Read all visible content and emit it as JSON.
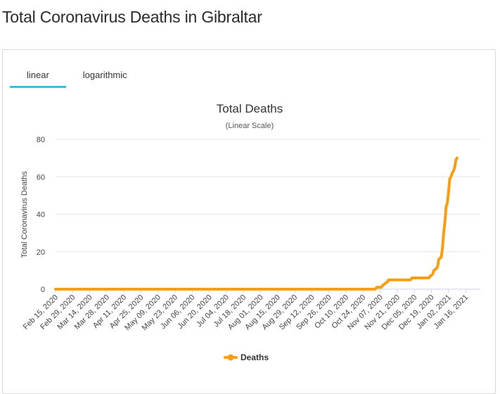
{
  "page": {
    "title": "Total Coronavirus Deaths in Gibraltar"
  },
  "tabs": [
    {
      "label": "linear",
      "active": true
    },
    {
      "label": "logarithmic",
      "active": false
    }
  ],
  "colors": {
    "series": "#f89e0f",
    "tab_active": "#3fbbe8",
    "grid": "#e6e6e6"
  },
  "chart_data": {
    "type": "line",
    "title": "Total Deaths",
    "subtitle": "(Linear Scale)",
    "ylabel": "Total Coronavirus Deaths",
    "xlabel": "",
    "ylim": [
      0,
      80
    ],
    "yticks": [
      0,
      20,
      40,
      60,
      80
    ],
    "grid": true,
    "legend_position": "bottom",
    "x_start": "Feb 15, 2020",
    "x_end": "Jan 28, 2021",
    "tick_labels": [
      "Feb 15, 2020",
      "Feb 29, 2020",
      "Mar 14, 2020",
      "Mar 28, 2020",
      "Apr 11, 2020",
      "Apr 25, 2020",
      "May 09, 2020",
      "May 23, 2020",
      "Jun 06, 2020",
      "Jun 20, 2020",
      "Jul 04, 2020",
      "Jul 18, 2020",
      "Aug 01, 2020",
      "Aug 15, 2020",
      "Aug 29, 2020",
      "Sep 12, 2020",
      "Sep 26, 2020",
      "Oct 10, 2020",
      "Oct 24, 2020",
      "Nov 07, 2020",
      "Nov 21, 2020",
      "Dec 05, 2020",
      "Dec 19, 2020",
      "Jan 02, 2021",
      "Jan 16, 2021"
    ],
    "series": [
      {
        "name": "Deaths",
        "points": [
          [
            "Feb 15, 2020",
            0
          ],
          [
            "Nov 03, 2020",
            0
          ],
          [
            "Nov 04, 2020",
            1
          ],
          [
            "Nov 08, 2020",
            1
          ],
          [
            "Nov 09, 2020",
            2
          ],
          [
            "Nov 11, 2020",
            3
          ],
          [
            "Nov 13, 2020",
            4
          ],
          [
            "Nov 14, 2020",
            5
          ],
          [
            "Dec 02, 2020",
            5
          ],
          [
            "Dec 03, 2020",
            6
          ],
          [
            "Dec 17, 2020",
            6
          ],
          [
            "Dec 18, 2020",
            7
          ],
          [
            "Dec 20, 2020",
            8
          ],
          [
            "Dec 21, 2020",
            10
          ],
          [
            "Dec 23, 2020",
            11
          ],
          [
            "Dec 24, 2020",
            12
          ],
          [
            "Dec 25, 2020",
            16
          ],
          [
            "Dec 27, 2020",
            17
          ],
          [
            "Dec 28, 2020",
            22
          ],
          [
            "Dec 29, 2020",
            30
          ],
          [
            "Dec 30, 2020",
            36
          ],
          [
            "Dec 31, 2020",
            44
          ],
          [
            "Jan 01, 2021",
            46
          ],
          [
            "Jan 02, 2021",
            52
          ],
          [
            "Jan 03, 2021",
            59
          ],
          [
            "Jan 04, 2021",
            60
          ],
          [
            "Jan 05, 2021",
            62
          ],
          [
            "Jan 06, 2021",
            63
          ],
          [
            "Jan 07, 2021",
            65
          ],
          [
            "Jan 08, 2021",
            69
          ],
          [
            "Jan 09, 2021",
            70
          ]
        ]
      }
    ]
  }
}
